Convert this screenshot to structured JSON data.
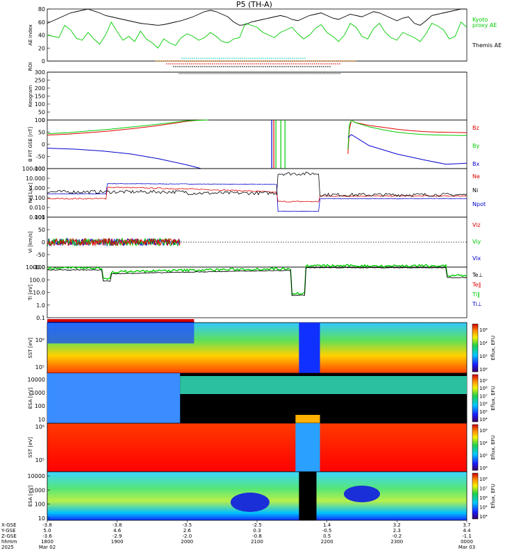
{
  "title": "P5 (TH-A)",
  "colors": {
    "red": "#e00000",
    "green": "#00cc00",
    "blue": "#0000cc",
    "black": "#000000",
    "cyan": "#00cccc",
    "orange": "#ff7f00"
  },
  "chart_data": [
    {
      "id": "ae",
      "type": "line",
      "ylabel": "AE index",
      "ylim": [
        0,
        80
      ],
      "yticks": [
        "0",
        "20",
        "40",
        "60",
        "80"
      ],
      "legend": [
        {
          "label": "Kyoto",
          "color": "green"
        },
        {
          "label": "proxy AE",
          "color": "green"
        },
        {
          "label": "Themis AE",
          "color": "black"
        }
      ],
      "series": [
        {
          "name": "Themis AE",
          "color": "black",
          "values": [
            58,
            62,
            66,
            70,
            74,
            76,
            78,
            80,
            77,
            74,
            70,
            68,
            66,
            64,
            62,
            60,
            58,
            57,
            56,
            55,
            56,
            58,
            60,
            62,
            65,
            68,
            72,
            76,
            78,
            76,
            72,
            68,
            60,
            55,
            56,
            60,
            62,
            64,
            66,
            68,
            70,
            68,
            64,
            62,
            66,
            70,
            72,
            74,
            70,
            66,
            64,
            68,
            72,
            70,
            68,
            72,
            76,
            74,
            70,
            66,
            62,
            66,
            68,
            58,
            55,
            62,
            70,
            72,
            74,
            76,
            78,
            80,
            80
          ]
        },
        {
          "name": "Kyoto proxy AE",
          "color": "green",
          "values": [
            40,
            38,
            36,
            55,
            48,
            35,
            32,
            44,
            34,
            26,
            40,
            60,
            45,
            32,
            38,
            30,
            46,
            34,
            28,
            20,
            34,
            28,
            24,
            36,
            42,
            38,
            32,
            36,
            44,
            38,
            30,
            28,
            34,
            36,
            58,
            55,
            52,
            44,
            40,
            36,
            44,
            48,
            52,
            42,
            34,
            40,
            50,
            56,
            44,
            38,
            30,
            40,
            58,
            52,
            38,
            34,
            50,
            58,
            44,
            36,
            32,
            44,
            40,
            36,
            30,
            42,
            58,
            54,
            48,
            34,
            38,
            60,
            52
          ]
        }
      ]
    },
    {
      "id": "roi",
      "type": "bar",
      "ylabel": "ROI",
      "segments": [
        {
          "color": "cyan",
          "start": 1.92,
          "end": 3.7
        },
        {
          "color": "orange",
          "start": 1.55,
          "end": 4.42
        },
        {
          "color": "red",
          "start": 1.7,
          "end": 4.2
        },
        {
          "color": "black",
          "start": 1.8,
          "end": 4.05
        }
      ]
    },
    {
      "id": "keogram",
      "type": "heatmap",
      "ylabel": "Keogram",
      "ylim": [
        0,
        300
      ],
      "yticks": [
        "0",
        "50",
        "100",
        "150",
        "200",
        "250",
        "300"
      ]
    },
    {
      "id": "bfgm",
      "type": "line",
      "ylabel": "B FIT GSE [nT]",
      "ylim": [
        -100,
        100
      ],
      "yticks": [
        "-100",
        "-50",
        "0",
        "50",
        "100"
      ],
      "legend": [
        {
          "label": "Bz",
          "color": "red"
        },
        {
          "label": "By",
          "color": "green"
        },
        {
          "label": "Bx",
          "color": "blue"
        }
      ],
      "series": [
        {
          "name": "Bz",
          "color": "red",
          "x": [
            0,
            0.3,
            0.6,
            0.9,
            1.2,
            1.5,
            1.8,
            2.0,
            2.2,
            4.28,
            4.3,
            4.32,
            4.35,
            4.4,
            4.6,
            4.8,
            5.0,
            5.2,
            5.4,
            5.6,
            6.0
          ],
          "values": [
            38,
            42,
            48,
            55,
            64,
            74,
            86,
            95,
            100,
            null,
            -40,
            60,
            100,
            90,
            78,
            70,
            62,
            56,
            52,
            50,
            48
          ]
        },
        {
          "name": "By",
          "color": "green",
          "x": [
            0,
            0.3,
            0.6,
            0.9,
            1.2,
            1.5,
            1.8,
            2.0,
            2.3,
            4.28,
            4.3,
            4.32,
            4.35,
            4.4,
            4.6,
            4.8,
            5.0,
            5.2,
            5.4,
            5.6,
            6.0
          ],
          "values": [
            44,
            48,
            55,
            62,
            71,
            80,
            90,
            97,
            100,
            null,
            -20,
            80,
            100,
            90,
            72,
            60,
            50,
            44,
            40,
            38,
            36
          ]
        },
        {
          "name": "Bx",
          "color": "blue",
          "x": [
            0,
            0.4,
            0.8,
            1.2,
            1.6,
            2.0,
            2.2,
            4.28,
            4.3,
            4.35,
            4.6,
            5.0,
            5.4,
            5.7,
            6.0
          ],
          "values": [
            -16,
            -20,
            -28,
            -40,
            -60,
            -85,
            -100,
            null,
            28,
            40,
            -5,
            -40,
            -65,
            -82,
            -78
          ]
        }
      ]
    },
    {
      "id": "moments",
      "type": "line",
      "ylabel": "Ni [1/cc]",
      "ylim": [
        0.001,
        100
      ],
      "log": true,
      "yticks": [
        "0.001",
        "0.010",
        "0.100",
        "1.000",
        "10.000",
        "100.000"
      ],
      "legend": [
        {
          "label": "Ne",
          "color": "red"
        },
        {
          "label": "Ni",
          "color": "black"
        },
        {
          "label": "Npot",
          "color": "blue"
        }
      ]
    },
    {
      "id": "velocity",
      "type": "line",
      "ylabel": "Vi [km/s]",
      "ylim": [
        -100,
        100
      ],
      "yticks": [
        "-100",
        "-50",
        "0",
        "50",
        "100"
      ],
      "legend": [
        {
          "label": "Viz",
          "color": "red"
        },
        {
          "label": "Viy",
          "color": "green"
        },
        {
          "label": "Vix",
          "color": "blue"
        }
      ]
    },
    {
      "id": "temperature",
      "type": "line",
      "ylabel": "Ti [eV]",
      "ylim": [
        0.1,
        1000
      ],
      "log": true,
      "yticks": [
        "0.1",
        "1.0",
        "10.0",
        "100.0",
        "1000.0"
      ],
      "legend": [
        {
          "label": "Te⊥",
          "color": "black"
        },
        {
          "label": "Te‖",
          "color": "red"
        },
        {
          "label": "Ti‖",
          "color": "green"
        },
        {
          "label": "Ti⊥",
          "color": "blue"
        }
      ]
    },
    {
      "id": "sst_e",
      "type": "heatmap",
      "ylabel": "SST [eV]",
      "ytick_labels": [
        "10⁶",
        "10⁵"
      ],
      "colorbar": {
        "label": "Eflux, EFU",
        "ticks": [
          "10⁸",
          "10⁴",
          "10⁵",
          "10⁶"
        ]
      }
    },
    {
      "id": "esa_e",
      "type": "heatmap",
      "ylabel": "ESA [eV]",
      "yticks": [
        "10",
        "100",
        "1000",
        "10000"
      ],
      "colorbar": {
        "label": "Eflux, EFU",
        "ticks": [
          "10⁹",
          "10⁸",
          "10⁷",
          "10⁶",
          "10⁵",
          "10⁴"
        ]
      }
    },
    {
      "id": "sst_i",
      "type": "heatmap",
      "ylabel": "SST [eV]",
      "ytick_labels": [
        "10⁶",
        "10⁵"
      ],
      "colorbar": {
        "label": "Eflux, EFU",
        "ticks": [
          "10⁸",
          "10⁴",
          "10⁵",
          "10⁶"
        ]
      }
    },
    {
      "id": "esa_i",
      "type": "heatmap",
      "ylabel": "ESA [eV]",
      "yticks": [
        "10",
        "100",
        "1000",
        "10000"
      ],
      "colorbar": {
        "label": "Eflux, EFU",
        "ticks": [
          "10⁸",
          "10⁷",
          "10⁶",
          "10⁵",
          "10⁴"
        ]
      }
    }
  ],
  "xaxis": {
    "row_labels": [
      "X-GSE",
      "Y-GSE",
      "Z-GSE",
      "hhmm",
      "2025"
    ],
    "ticks": [
      {
        "v": [
          "-3.8",
          "5.0",
          "-3.6",
          "1800",
          "Mar 02"
        ]
      },
      {
        "v": [
          "-3.8",
          "4.6",
          "-2.9",
          "1900",
          ""
        ]
      },
      {
        "v": [
          "-3.5",
          "2.6",
          "-2.0",
          "2000",
          ""
        ]
      },
      {
        "v": [
          "-2.5",
          "0.3",
          "-0.8",
          "2100",
          ""
        ]
      },
      {
        "v": [
          "1.4",
          "-0.5",
          "0.5",
          "2200",
          ""
        ]
      },
      {
        "v": [
          "3.2",
          "2.3",
          "-0.2",
          "2300",
          ""
        ]
      },
      {
        "v": [
          "3.7",
          "4.4",
          "-1.1",
          "0000",
          "Mar 03"
        ]
      }
    ]
  }
}
